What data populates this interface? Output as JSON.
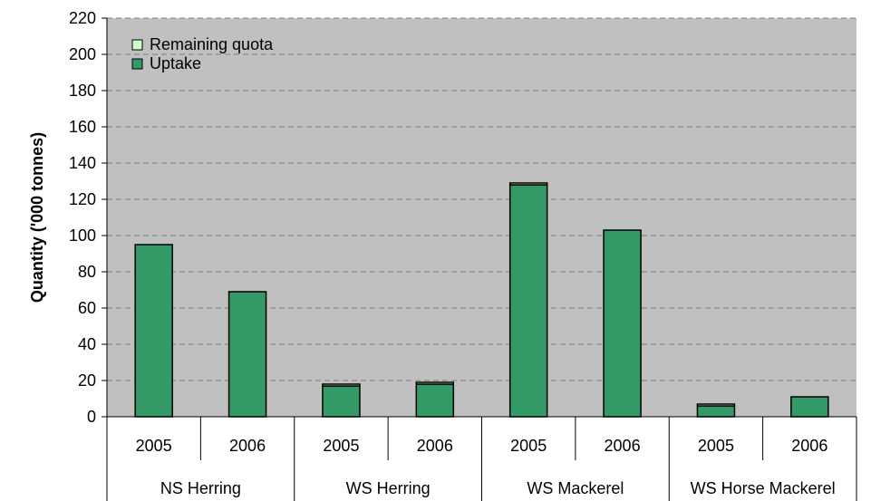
{
  "chart_data": {
    "type": "bar",
    "stacked": true,
    "ylabel": "Quantity ('000 tonnes)",
    "ylim": [
      0,
      220
    ],
    "yticks": [
      0,
      20,
      40,
      60,
      80,
      100,
      120,
      140,
      160,
      180,
      200,
      220
    ],
    "grid": true,
    "legend_position": "top-left",
    "groups": [
      "NS Herring",
      "WS Herring",
      "WS Mackerel",
      "WS Horse Mackerel"
    ],
    "categories": [
      "2005",
      "2006",
      "2005",
      "2006",
      "2005",
      "2006",
      "2005",
      "2006"
    ],
    "series": [
      {
        "name": "Uptake",
        "color": "#339966",
        "values": [
          95,
          69,
          17,
          18,
          128,
          103,
          6,
          11
        ]
      },
      {
        "name": "Remaining quota",
        "color": "#ccffcc",
        "values": [
          0,
          0,
          1,
          1,
          1,
          0,
          1,
          0
        ]
      }
    ],
    "plot_background": "#c0c0c0",
    "gridline_color": "#808080"
  }
}
